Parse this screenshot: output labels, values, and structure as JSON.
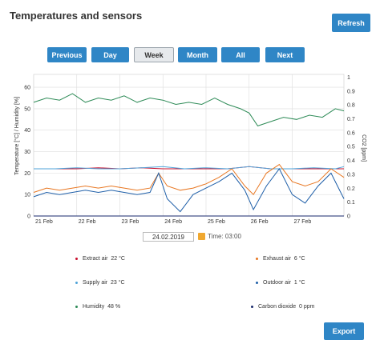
{
  "header": {
    "title": "Temperatures and sensors",
    "refresh_label": "Refresh"
  },
  "nav": {
    "buttons": [
      {
        "label": "Previous",
        "active": false
      },
      {
        "label": "Day",
        "active": false
      },
      {
        "label": "Week",
        "active": true
      },
      {
        "label": "Month",
        "active": false
      },
      {
        "label": "All",
        "active": false
      },
      {
        "label": "Next",
        "active": false
      }
    ]
  },
  "date_picker": {
    "date": "24.02.2019",
    "time_label": "Time: 03:00"
  },
  "legend": [
    {
      "name": "Extract air",
      "value": "22 °C",
      "color": "#c8102e"
    },
    {
      "name": "Exhaust air",
      "value": "6 °C",
      "color": "#e87722"
    },
    {
      "name": "Supply air",
      "value": "23 °C",
      "color": "#4fa3d9"
    },
    {
      "name": "Outdoor air",
      "value": "1 °C",
      "color": "#1f5fa8"
    },
    {
      "name": "Humidity",
      "value": "48 %",
      "color": "#2e8b57"
    },
    {
      "name": "Carbon dioxide",
      "value": "0 ppm",
      "color": "#1a2a6c"
    }
  ],
  "footer": {
    "export_label": "Export"
  },
  "chart_data": {
    "type": "line",
    "xlabel": "",
    "ylabel": "Temperature [°C] / Humidity [%]",
    "y2label": "CO2 [ppm]",
    "x_ticks": [
      "21 Feb",
      "22 Feb",
      "23 Feb",
      "24 Feb",
      "25 Feb",
      "26 Feb",
      "27 Feb"
    ],
    "xlim": [
      0,
      7.2
    ],
    "ylim": [
      0,
      66
    ],
    "y_ticks": [
      0,
      10,
      20,
      30,
      40,
      50,
      60
    ],
    "y2lim": [
      0,
      1.02
    ],
    "y2_ticks": [
      0,
      0.1,
      0.2,
      0.3,
      0.4,
      0.5,
      0.6,
      0.7,
      0.8,
      0.9,
      1
    ],
    "grid": true,
    "series": [
      {
        "name": "Humidity",
        "color": "#2e8b57",
        "x": [
          0,
          0.3,
          0.6,
          0.9,
          1.2,
          1.5,
          1.8,
          2.1,
          2.4,
          2.7,
          3.0,
          3.3,
          3.6,
          3.9,
          4.2,
          4.5,
          4.8,
          5.0,
          5.2,
          5.5,
          5.8,
          6.1,
          6.4,
          6.7,
          7.0,
          7.2
        ],
        "y": [
          53,
          55,
          54,
          57,
          53,
          55,
          54,
          56,
          53,
          55,
          54,
          52,
          53,
          52,
          55,
          52,
          50,
          48,
          42,
          44,
          46,
          45,
          47,
          46,
          50,
          49
        ]
      },
      {
        "name": "Extract air",
        "color": "#c8102e",
        "x": [
          0,
          0.5,
          1.0,
          1.5,
          2.0,
          2.5,
          3.0,
          3.5,
          4.0,
          4.5,
          5.0,
          5.5,
          6.0,
          6.5,
          7.0,
          7.2
        ],
        "y": [
          22,
          22,
          22,
          22.5,
          22,
          22.5,
          22,
          22,
          22,
          22,
          23,
          22,
          22,
          22,
          22,
          22
        ]
      },
      {
        "name": "Supply air",
        "color": "#4fa3d9",
        "x": [
          0,
          0.5,
          1.0,
          1.5,
          2.0,
          2.5,
          3.0,
          3.5,
          4.0,
          4.5,
          5.0,
          5.5,
          6.0,
          6.5,
          7.0,
          7.2
        ],
        "y": [
          22,
          22,
          22.5,
          22,
          22,
          22.5,
          23,
          22,
          22.5,
          22,
          23,
          22,
          22,
          22.5,
          22,
          23
        ]
      },
      {
        "name": "Exhaust air",
        "color": "#e87722",
        "x": [
          0,
          0.3,
          0.6,
          0.9,
          1.2,
          1.5,
          1.8,
          2.1,
          2.4,
          2.7,
          2.9,
          3.1,
          3.4,
          3.7,
          4.0,
          4.3,
          4.6,
          4.9,
          5.1,
          5.4,
          5.7,
          6.0,
          6.3,
          6.6,
          6.9,
          7.2
        ],
        "y": [
          11,
          13,
          12,
          13,
          14,
          13,
          14,
          13,
          12,
          13,
          20,
          14,
          12,
          13,
          15,
          18,
          22,
          14,
          10,
          20,
          24,
          16,
          14,
          16,
          22,
          18
        ]
      },
      {
        "name": "Outdoor air",
        "color": "#1f5fa8",
        "x": [
          0,
          0.3,
          0.6,
          0.9,
          1.2,
          1.5,
          1.8,
          2.1,
          2.4,
          2.7,
          2.9,
          3.1,
          3.4,
          3.7,
          4.0,
          4.3,
          4.6,
          4.9,
          5.1,
          5.4,
          5.7,
          6.0,
          6.3,
          6.6,
          6.9,
          7.2
        ],
        "y": [
          9,
          11,
          10,
          11,
          12,
          11,
          12,
          11,
          10,
          11,
          20,
          8,
          2,
          10,
          13,
          16,
          20,
          12,
          3,
          14,
          22,
          10,
          6,
          14,
          20,
          8
        ]
      },
      {
        "name": "Carbon dioxide",
        "color": "#1a2a6c",
        "axis": "y2",
        "x": [
          0,
          7.2
        ],
        "y": [
          0,
          0
        ]
      }
    ]
  }
}
